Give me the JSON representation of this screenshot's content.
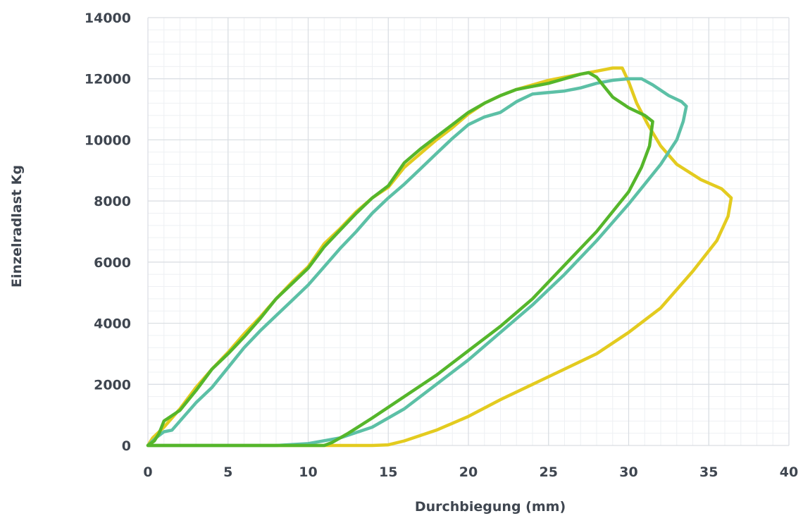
{
  "chart_data": {
    "type": "line",
    "title": "",
    "xlabel": "Durchbiegung (mm)",
    "ylabel": "Einzelradlast  Kg",
    "xlim": [
      0,
      40
    ],
    "ylim": [
      0,
      14000
    ],
    "x_ticks": [
      "0",
      "5",
      "10",
      "15",
      "20",
      "25",
      "30",
      "35",
      "40"
    ],
    "y_ticks": [
      "0",
      "2000",
      "4000",
      "6000",
      "8000",
      "10000",
      "12000",
      "14000"
    ],
    "grid": true,
    "series": [
      {
        "color": "#e3cb1f",
        "points": [
          [
            0,
            0
          ],
          [
            0.3,
            250
          ],
          [
            1,
            600
          ],
          [
            2,
            1200
          ],
          [
            3,
            1900
          ],
          [
            4,
            2500
          ],
          [
            5,
            3050
          ],
          [
            6,
            3650
          ],
          [
            7,
            4200
          ],
          [
            8,
            4800
          ],
          [
            9,
            5350
          ],
          [
            10,
            5850
          ],
          [
            11,
            6600
          ],
          [
            12,
            7100
          ],
          [
            13,
            7650
          ],
          [
            14,
            8100
          ],
          [
            15,
            8450
          ],
          [
            16,
            9100
          ],
          [
            17,
            9550
          ],
          [
            18,
            10000
          ],
          [
            19,
            10400
          ],
          [
            20,
            10850
          ],
          [
            21,
            11200
          ],
          [
            22,
            11450
          ],
          [
            23,
            11650
          ],
          [
            24,
            11800
          ],
          [
            25,
            11950
          ],
          [
            26,
            12050
          ],
          [
            27,
            12150
          ],
          [
            28,
            12250
          ],
          [
            29,
            12350
          ],
          [
            29.6,
            12350
          ],
          [
            30,
            11900
          ],
          [
            30.5,
            11200
          ],
          [
            31.2,
            10500
          ],
          [
            32,
            9800
          ],
          [
            33,
            9200
          ],
          [
            34.5,
            8700
          ],
          [
            35.8,
            8400
          ],
          [
            36.4,
            8100
          ],
          [
            36.2,
            7500
          ],
          [
            35.5,
            6700
          ],
          [
            34,
            5700
          ],
          [
            32,
            4500
          ],
          [
            30,
            3700
          ],
          [
            28,
            3000
          ],
          [
            26,
            2500
          ],
          [
            24,
            2000
          ],
          [
            22,
            1500
          ],
          [
            20,
            950
          ],
          [
            18,
            500
          ],
          [
            16,
            150
          ],
          [
            15,
            20
          ],
          [
            14,
            0
          ],
          [
            10,
            0
          ],
          [
            5,
            0
          ],
          [
            0,
            0
          ]
        ]
      },
      {
        "color": "#5cc0a6",
        "points": [
          [
            0,
            0
          ],
          [
            0.5,
            250
          ],
          [
            1,
            450
          ],
          [
            1.5,
            500
          ],
          [
            2,
            800
          ],
          [
            2.5,
            1100
          ],
          [
            3,
            1400
          ],
          [
            4,
            1900
          ],
          [
            5,
            2550
          ],
          [
            6,
            3200
          ],
          [
            7,
            3750
          ],
          [
            8,
            4250
          ],
          [
            9,
            4750
          ],
          [
            10,
            5250
          ],
          [
            11,
            5850
          ],
          [
            12,
            6450
          ],
          [
            13,
            7000
          ],
          [
            14,
            7600
          ],
          [
            15,
            8100
          ],
          [
            16,
            8550
          ],
          [
            17,
            9050
          ],
          [
            18,
            9550
          ],
          [
            19,
            10050
          ],
          [
            20,
            10500
          ],
          [
            21,
            10750
          ],
          [
            22,
            10900
          ],
          [
            23,
            11250
          ],
          [
            24,
            11500
          ],
          [
            25,
            11550
          ],
          [
            26,
            11600
          ],
          [
            27,
            11700
          ],
          [
            28,
            11850
          ],
          [
            29,
            11950
          ],
          [
            30,
            12000
          ],
          [
            30.8,
            12000
          ],
          [
            31.5,
            11800
          ],
          [
            32.5,
            11450
          ],
          [
            33.3,
            11250
          ],
          [
            33.6,
            11100
          ],
          [
            33.4,
            10600
          ],
          [
            33,
            10000
          ],
          [
            32,
            9200
          ],
          [
            31,
            8550
          ],
          [
            30,
            7900
          ],
          [
            28,
            6700
          ],
          [
            26,
            5600
          ],
          [
            24,
            4600
          ],
          [
            22,
            3700
          ],
          [
            20,
            2800
          ],
          [
            18,
            2000
          ],
          [
            16,
            1200
          ],
          [
            14,
            600
          ],
          [
            12,
            250
          ],
          [
            10,
            60
          ],
          [
            8,
            0
          ],
          [
            5,
            0
          ],
          [
            0,
            0
          ]
        ]
      },
      {
        "color": "#55b62b",
        "points": [
          [
            0,
            0
          ],
          [
            0.4,
            150
          ],
          [
            0.7,
            400
          ],
          [
            1,
            800
          ],
          [
            2,
            1150
          ],
          [
            3,
            1800
          ],
          [
            4,
            2500
          ],
          [
            5,
            3000
          ],
          [
            6,
            3550
          ],
          [
            7,
            4150
          ],
          [
            8,
            4800
          ],
          [
            9,
            5300
          ],
          [
            10,
            5800
          ],
          [
            11,
            6500
          ],
          [
            12,
            7050
          ],
          [
            13,
            7600
          ],
          [
            14,
            8100
          ],
          [
            15,
            8500
          ],
          [
            16,
            9250
          ],
          [
            17,
            9700
          ],
          [
            18,
            10100
          ],
          [
            19,
            10500
          ],
          [
            20,
            10900
          ],
          [
            21,
            11200
          ],
          [
            22,
            11450
          ],
          [
            23,
            11650
          ],
          [
            24,
            11750
          ],
          [
            25,
            11850
          ],
          [
            26,
            12000
          ],
          [
            27,
            12150
          ],
          [
            27.5,
            12200
          ],
          [
            28,
            12050
          ],
          [
            29,
            11400
          ],
          [
            30,
            11050
          ],
          [
            31,
            10800
          ],
          [
            31.5,
            10600
          ],
          [
            31.3,
            9800
          ],
          [
            30.8,
            9100
          ],
          [
            30,
            8300
          ],
          [
            28,
            7000
          ],
          [
            26,
            5900
          ],
          [
            24,
            4800
          ],
          [
            22,
            3900
          ],
          [
            20,
            3100
          ],
          [
            18,
            2300
          ],
          [
            16,
            1600
          ],
          [
            14,
            900
          ],
          [
            12.5,
            400
          ],
          [
            11.5,
            100
          ],
          [
            11,
            0
          ],
          [
            5,
            0
          ],
          [
            0,
            0
          ]
        ]
      }
    ]
  }
}
